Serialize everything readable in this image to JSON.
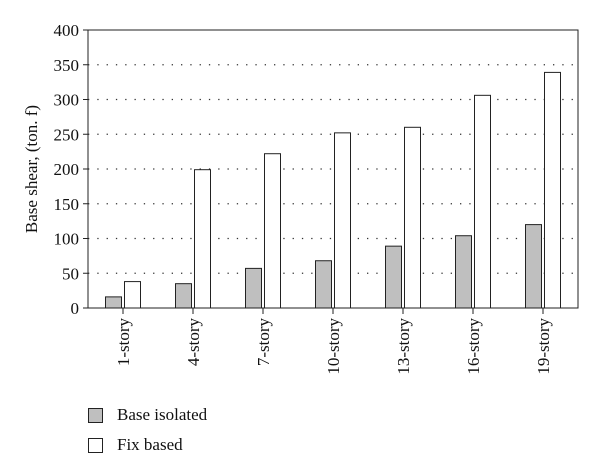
{
  "chart_data": {
    "type": "bar",
    "categories": [
      "1-story",
      "4-story",
      "7-story",
      "10-story",
      "13-story",
      "16-story",
      "19-story"
    ],
    "series": [
      {
        "name": "Base isolated",
        "values": [
          16,
          35,
          57,
          68,
          89,
          104,
          120
        ],
        "color": "#bfbfbf"
      },
      {
        "name": "Fix based",
        "values": [
          38,
          199,
          222,
          252,
          260,
          306,
          339
        ],
        "color": "#ffffff"
      }
    ],
    "ylabel": "Base shear, (ton. f)",
    "xlabel": "",
    "ylim": [
      0,
      400
    ],
    "yticks": [
      0,
      50,
      100,
      150,
      200,
      250,
      300,
      350,
      400
    ],
    "grid": true,
    "legend_position": "bottom-left"
  }
}
